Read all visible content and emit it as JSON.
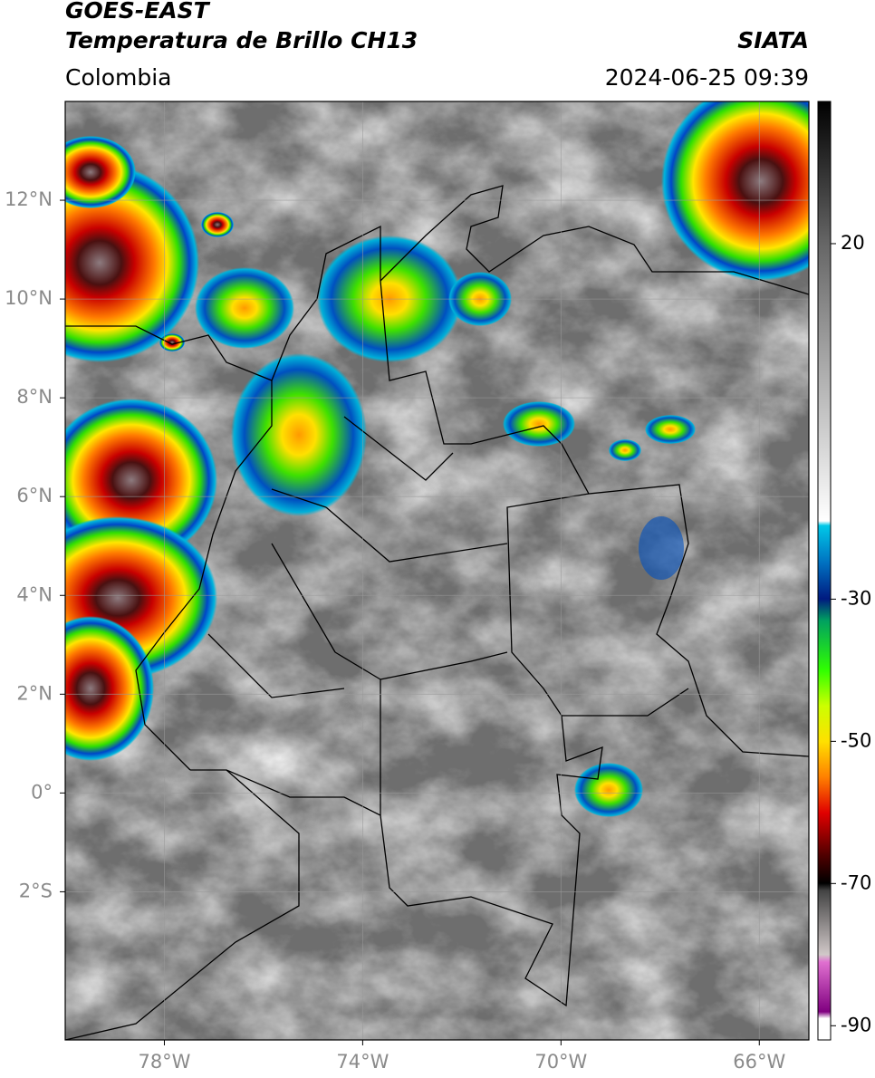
{
  "header": {
    "title": "GOES-EAST",
    "subtitle": "Temperatura de Brillo CH13",
    "source": "SIATA",
    "region": "Colombia",
    "datetime": "2024-06-25 09:39"
  },
  "map": {
    "lon_range": [
      -80,
      -65
    ],
    "lat_range": [
      -5,
      14
    ],
    "lon_ticks": [
      {
        "value": -78,
        "label": "78°W"
      },
      {
        "value": -74,
        "label": "74°W"
      },
      {
        "value": -70,
        "label": "70°W"
      },
      {
        "value": -66,
        "label": "66°W"
      }
    ],
    "lat_ticks": [
      {
        "value": -2,
        "label": "2°S"
      },
      {
        "value": 0,
        "label": "0°"
      },
      {
        "value": 2,
        "label": "2°N"
      },
      {
        "value": 4,
        "label": "4°N"
      },
      {
        "value": 6,
        "label": "6°N"
      },
      {
        "value": 8,
        "label": "8°N"
      },
      {
        "value": 10,
        "label": "10°N"
      },
      {
        "value": 12,
        "label": "12°N"
      }
    ]
  },
  "colorbar": {
    "range": [
      -92,
      40
    ],
    "ticks": [
      20,
      -30,
      -50,
      -70,
      -90
    ]
  }
}
